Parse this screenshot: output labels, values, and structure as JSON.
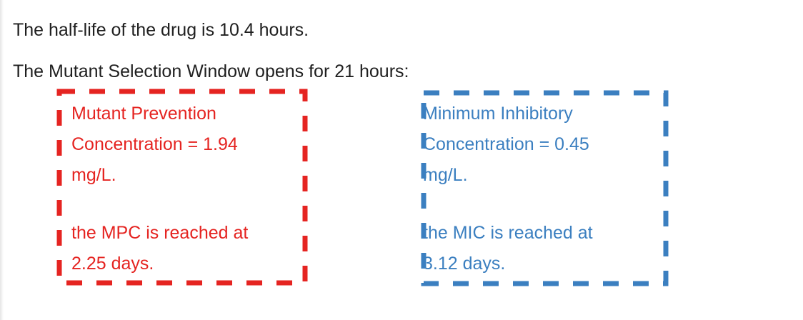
{
  "intro": {
    "half_life_text": "The half-life of the drug is 10.4 hours.",
    "window_text": "The Mutant Selection Window opens for 21 hours:"
  },
  "mpc_box": {
    "label_line1": "Mutant Prevention",
    "label_line2": "Concentration = 1.94",
    "label_line3": "mg/L.",
    "reached_line1": "the MPC is reached at",
    "reached_line2": "2.25 days.",
    "color": "#e52421"
  },
  "mic_box": {
    "label_line1": "Minimum Inhibitory",
    "label_line2": "Concentration = 0.45",
    "label_line3": "mg/L.",
    "reached_line1": "the MIC is reached at",
    "reached_line2": "3.12 days.",
    "color": "#3b7fc0"
  }
}
